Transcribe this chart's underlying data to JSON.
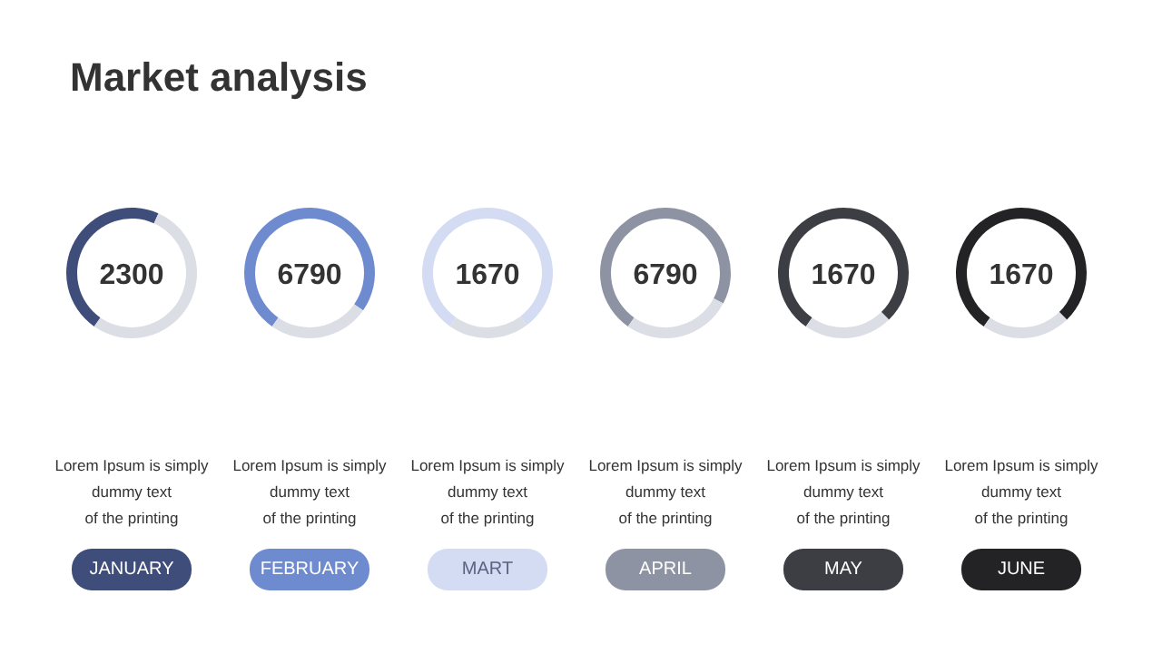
{
  "chart_data": [
    {
      "type": "other",
      "title": "Market analysis"
    },
    {
      "type": "donut",
      "title": "2300",
      "subtitle": "JANUARY",
      "categories": [
        null,
        null
      ],
      "values": [
        47,
        53
      ],
      "colors": [
        "#3f4d7a",
        "#dcdee6"
      ],
      "annotations": [
        "Lorem Ipsum is simply",
        "dummy text",
        "of the printing"
      ]
    },
    {
      "type": "donut",
      "title": "6790",
      "subtitle": "FEBRUARY",
      "categories": [
        null,
        null
      ],
      "values": [
        75,
        25
      ],
      "colors": [
        "#6f8bd0",
        "#dcdee6"
      ],
      "annotations": [
        "Lorem Ipsum is simply",
        "dummy text",
        "of the printing"
      ]
    },
    {
      "type": "donut",
      "title": "1670",
      "subtitle": "MART",
      "categories": [
        null,
        null
      ],
      "values": [
        80,
        20
      ],
      "colors": [
        "#d3dcf2",
        "#dcdee6"
      ],
      "annotations": [
        "Lorem Ipsum is simply",
        "dummy text",
        "of the printing"
      ]
    },
    {
      "type": "donut",
      "title": "6790",
      "subtitle": "APRIL",
      "categories": [
        null,
        null
      ],
      "values": [
        73,
        27
      ],
      "colors": [
        "#8e93a3",
        "#dcdee6"
      ],
      "annotations": [
        "Lorem Ipsum is simply",
        "dummy text",
        "of the printing"
      ]
    },
    {
      "type": "donut",
      "title": "1670",
      "subtitle": "MAY",
      "categories": [
        null,
        null
      ],
      "values": [
        78,
        22
      ],
      "colors": [
        "#3c3e44",
        "#dcdee6"
      ],
      "annotations": [
        "Lorem Ipsum is simply",
        "dummy text",
        "of the printing"
      ]
    },
    {
      "type": "donut",
      "title": "1670",
      "subtitle": "JUNE",
      "categories": [
        null,
        null
      ],
      "values": [
        78,
        22
      ],
      "colors": [
        "#232325",
        "#dcdee6"
      ],
      "annotations": [
        "Lorem Ipsum is simply",
        "dummy text",
        "of the printing"
      ]
    }
  ]
}
